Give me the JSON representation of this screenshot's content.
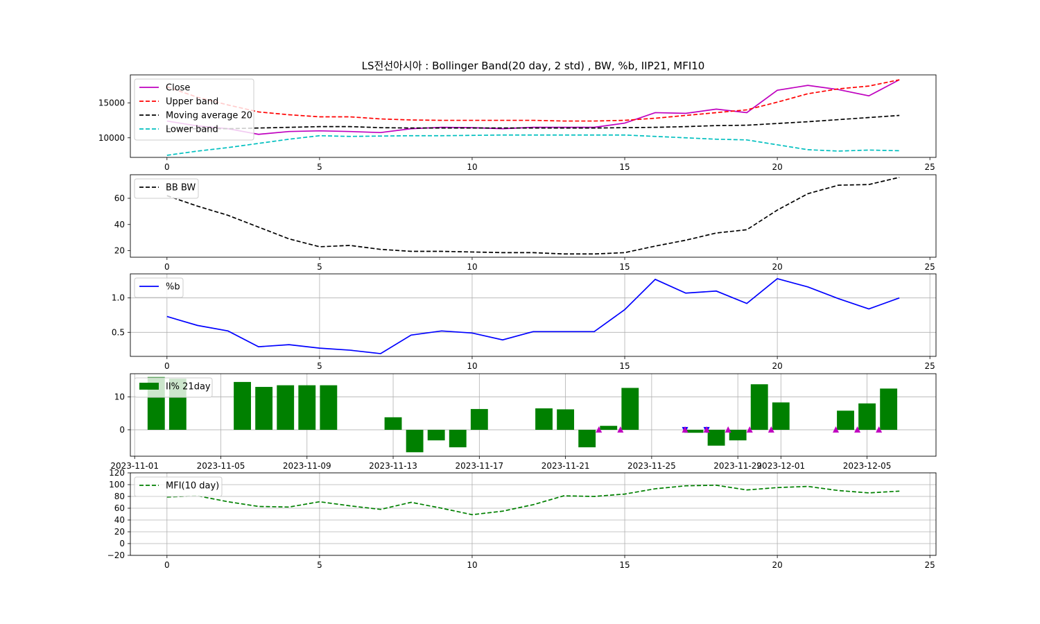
{
  "title": "LS전선아시아 : Bollinger Band(20 day, 2 std) , BW, %b, IIP21, MFI10",
  "colors": {
    "close": "#bf00bf",
    "upper": "#ff0000",
    "ma": "#000000",
    "lower": "#00bfbf",
    "bw": "#000000",
    "pb": "#0000ff",
    "iip": "#008000",
    "mfi": "#008000",
    "buy": "#bf00bf",
    "sell": "#0000ff",
    "grid": "#b0b0b0"
  },
  "chart_data": [
    {
      "type": "line",
      "legend": "upper-left",
      "x": [
        0,
        1,
        2,
        3,
        4,
        5,
        6,
        7,
        8,
        9,
        10,
        11,
        12,
        13,
        14,
        15,
        16,
        17,
        18,
        19,
        20,
        21,
        22,
        23,
        24
      ],
      "xlim": [
        -1.2,
        25.2
      ],
      "xticks": [
        "0",
        "5",
        "10",
        "15",
        "20",
        "25"
      ],
      "ylim": [
        7200,
        19000
      ],
      "yticks": [
        "10000",
        "15000"
      ],
      "grid": false,
      "series": [
        {
          "name": "Close",
          "style": "solid",
          "values": [
            12400,
            11700,
            11300,
            10500,
            10900,
            11000,
            10900,
            10750,
            11300,
            11500,
            11450,
            11300,
            11500,
            11500,
            11500,
            12100,
            13600,
            13500,
            14100,
            13600,
            16800,
            17500,
            16900,
            16000,
            18300
          ]
        },
        {
          "name": "Upper band",
          "style": "dashed",
          "values": [
            17300,
            15800,
            14700,
            13700,
            13300,
            13000,
            13000,
            12700,
            12550,
            12500,
            12500,
            12500,
            12500,
            12400,
            12400,
            12500,
            12800,
            13200,
            13600,
            14000,
            15100,
            16300,
            17000,
            17400,
            18300
          ]
        },
        {
          "name": "Moving average 20",
          "style": "dashed",
          "values": [
            11300,
            11300,
            11300,
            11400,
            11500,
            11600,
            11600,
            11450,
            11400,
            11400,
            11400,
            11400,
            11400,
            11400,
            11400,
            11450,
            11500,
            11600,
            11750,
            11800,
            12050,
            12300,
            12600,
            12900,
            13200
          ]
        },
        {
          "name": "Lower band",
          "style": "dashed",
          "values": [
            7500,
            8100,
            8600,
            9200,
            9800,
            10300,
            10200,
            10250,
            10300,
            10300,
            10350,
            10400,
            10400,
            10400,
            10400,
            10400,
            10200,
            10000,
            9800,
            9700,
            9000,
            8300,
            8100,
            8250,
            8150
          ]
        }
      ]
    },
    {
      "type": "line",
      "legend": "upper-left",
      "x": [
        0,
        1,
        2,
        3,
        4,
        5,
        6,
        7,
        8,
        9,
        10,
        11,
        12,
        13,
        14,
        15,
        16,
        17,
        18,
        19,
        20,
        21,
        22,
        23,
        24
      ],
      "xlim": [
        -1.2,
        25.2
      ],
      "xticks": [
        "0",
        "5",
        "10",
        "15",
        "20",
        "25"
      ],
      "ylim": [
        15,
        78
      ],
      "yticks": [
        "20",
        "40",
        "60"
      ],
      "grid": false,
      "series": [
        {
          "name": "BB BW",
          "style": "dashed",
          "values": [
            62,
            54,
            47,
            38,
            29,
            23,
            24,
            21,
            19.5,
            19.5,
            19,
            18.5,
            18.5,
            17.5,
            17.5,
            18.5,
            23.5,
            28,
            33.5,
            36,
            51,
            63.5,
            70,
            70.5,
            76
          ]
        }
      ]
    },
    {
      "type": "line",
      "legend": "upper-left",
      "x": [
        0,
        1,
        2,
        3,
        4,
        5,
        6,
        7,
        8,
        9,
        10,
        11,
        12,
        13,
        14,
        15,
        16,
        17,
        18,
        19,
        20,
        21,
        22,
        23,
        24
      ],
      "xlim": [
        -1.2,
        25.2
      ],
      "xticks": [
        "0",
        "5",
        "10",
        "15",
        "20",
        "25"
      ],
      "ylim": [
        0.15,
        1.35
      ],
      "yticks": [
        "0.5",
        "1.0"
      ],
      "grid": true,
      "series": [
        {
          "name": "%b",
          "style": "solid",
          "values": [
            0.73,
            0.6,
            0.52,
            0.29,
            0.32,
            0.27,
            0.24,
            0.19,
            0.46,
            0.52,
            0.49,
            0.39,
            0.51,
            0.51,
            0.51,
            0.83,
            1.27,
            1.07,
            1.1,
            0.92,
            1.28,
            1.16,
            0.99,
            0.84,
            1.0
          ]
        }
      ]
    },
    {
      "type": "bar",
      "legend": "upper-left",
      "x_is_date": true,
      "dates": [
        "2023-11-02",
        "2023-11-03",
        "2023-11-06",
        "2023-11-07",
        "2023-11-08",
        "2023-11-09",
        "2023-11-10",
        "2023-11-13",
        "2023-11-14",
        "2023-11-15",
        "2023-11-16",
        "2023-11-17",
        "2023-11-20",
        "2023-11-21",
        "2023-11-22",
        "2023-11-23",
        "2023-11-24",
        "2023-11-27",
        "2023-11-28",
        "2023-11-29",
        "2023-11-30",
        "2023-12-01",
        "2023-12-04",
        "2023-12-05",
        "2023-12-06"
      ],
      "xlim": [
        "2023-10-31T19:12",
        "2023-12-08T04:48"
      ],
      "xticks": [
        "2023-11-01",
        "2023-11-05",
        "2023-11-09",
        "2023-11-13",
        "2023-11-17",
        "2023-11-21",
        "2023-11-25",
        "2023-11-29",
        "2023-12-01",
        "2023-12-05"
      ],
      "ylim": [
        -8,
        17
      ],
      "yticks": [
        "0",
        "10"
      ],
      "grid": true,
      "series": [
        {
          "name": "II% 21day",
          "values": [
            16,
            15.5,
            14.5,
            13,
            13.5,
            13.5,
            13.5,
            3.8,
            -6.8,
            -3.2,
            -5.3,
            6.3,
            6.5,
            6.2,
            -5.3,
            1.2,
            12.7,
            -0.9,
            -4.8,
            -3.2,
            13.8,
            8.3,
            5.8,
            8,
            12.5
          ]
        }
      ],
      "markers": [
        {
          "date": "2023-11-23",
          "kind": "buy"
        },
        {
          "date": "2023-11-24",
          "kind": "buy"
        },
        {
          "date": "2023-11-27",
          "kind": "sell"
        },
        {
          "date": "2023-11-27",
          "kind": "buy"
        },
        {
          "date": "2023-11-28",
          "kind": "sell"
        },
        {
          "date": "2023-11-28",
          "kind": "buy"
        },
        {
          "date": "2023-11-29",
          "kind": "buy"
        },
        {
          "date": "2023-11-30",
          "kind": "buy"
        },
        {
          "date": "2023-12-01",
          "kind": "buy"
        },
        {
          "date": "2023-12-04",
          "kind": "buy"
        },
        {
          "date": "2023-12-05",
          "kind": "buy"
        },
        {
          "date": "2023-12-06",
          "kind": "buy"
        }
      ]
    },
    {
      "type": "line",
      "legend": "upper-left",
      "x": [
        0,
        1,
        2,
        3,
        4,
        5,
        6,
        7,
        8,
        9,
        10,
        11,
        12,
        13,
        14,
        15,
        16,
        17,
        18,
        19,
        20,
        21,
        22,
        23,
        24
      ],
      "xlim": [
        -1.2,
        25.2
      ],
      "xticks": [
        "0",
        "5",
        "10",
        "15",
        "20",
        "25"
      ],
      "ylim": [
        -20,
        120
      ],
      "yticks": [
        "−20",
        "0",
        "20",
        "40",
        "60",
        "80",
        "100",
        "120"
      ],
      "grid": true,
      "series": [
        {
          "name": "MFI(10 day)",
          "style": "dashed",
          "values": [
            79,
            81,
            71,
            63,
            62,
            71,
            64,
            58,
            70,
            60,
            49,
            55,
            66,
            81,
            80,
            84,
            93,
            98,
            99,
            91,
            95,
            97,
            90,
            86,
            89
          ]
        }
      ]
    }
  ]
}
